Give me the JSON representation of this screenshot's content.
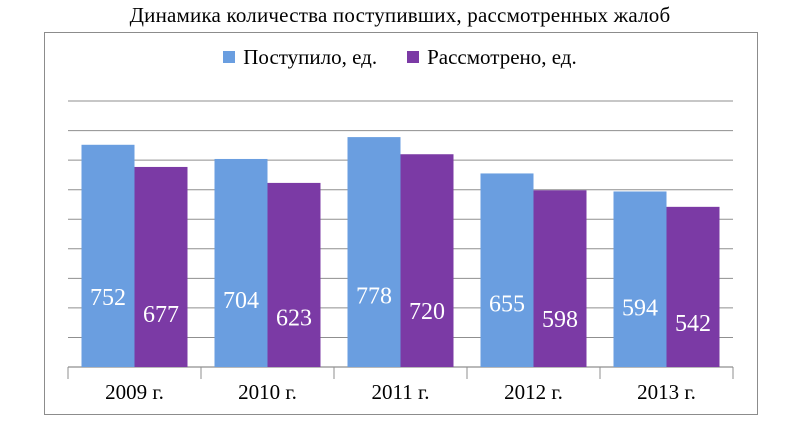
{
  "chart_data": {
    "type": "bar",
    "title": "Динамика количества поступивших, рассмотренных жалоб",
    "categories": [
      "2009 г.",
      "2010 г.",
      "2011 г.",
      "2012 г.",
      "2013 г."
    ],
    "series": [
      {
        "name": "Поступило, ед.",
        "values": [
          752,
          704,
          778,
          655,
          594
        ],
        "color": "#6a9ee0"
      },
      {
        "name": "Рассмотрено, ед.",
        "values": [
          677,
          623,
          720,
          598,
          542
        ],
        "color": "#7b3aa5"
      }
    ],
    "ylim": [
      0,
      900
    ],
    "ytick_step": 100,
    "grid": true,
    "legend_position": "top",
    "xlabel": "",
    "ylabel": ""
  }
}
